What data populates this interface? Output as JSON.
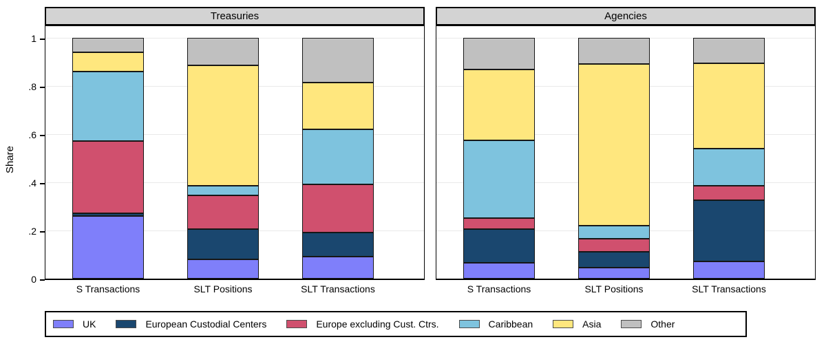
{
  "chart_data": {
    "type": "bar",
    "stacked": true,
    "orientation": "vertical",
    "ylabel": "Share",
    "ylim": [
      0,
      1
    ],
    "yticks": [
      {
        "value": 0,
        "label": "0"
      },
      {
        "value": 0.2,
        "label": ".2"
      },
      {
        "value": 0.4,
        "label": ".4"
      },
      {
        "value": 0.6,
        "label": ".6"
      },
      {
        "value": 0.8,
        "label": ".8"
      },
      {
        "value": 1,
        "label": "1"
      }
    ],
    "grid": true,
    "legend_position": "bottom",
    "categories": [
      "S Transactions",
      "SLT Positions",
      "SLT Transactions"
    ],
    "panels": [
      {
        "title": "Treasuries",
        "series": [
          {
            "name": "UK",
            "color": "#7f7ffa",
            "values": [
              0.26,
              0.08,
              0.09
            ]
          },
          {
            "name": "European Custodial Centers",
            "color": "#1a476f",
            "values": [
              0.01,
              0.125,
              0.1
            ]
          },
          {
            "name": "Europe excluding Cust. Ctrs.",
            "color": "#d0506e",
            "values": [
              0.3,
              0.14,
              0.2
            ]
          },
          {
            "name": "Caribbean",
            "color": "#7ec3de",
            "values": [
              0.29,
              0.04,
              0.23
            ]
          },
          {
            "name": "Asia",
            "color": "#ffe77e",
            "values": [
              0.08,
              0.5,
              0.195
            ]
          },
          {
            "name": "Other",
            "color": "#c0c0c0",
            "values": [
              0.06,
              0.115,
              0.185
            ]
          }
        ]
      },
      {
        "title": "Agencies",
        "series": [
          {
            "name": "UK",
            "color": "#7f7ffa",
            "values": [
              0.065,
              0.045,
              0.07
            ]
          },
          {
            "name": "European Custodial Centers",
            "color": "#1a476f",
            "values": [
              0.14,
              0.065,
              0.255
            ]
          },
          {
            "name": "Europe excluding Cust. Ctrs.",
            "color": "#d0506e",
            "values": [
              0.045,
              0.055,
              0.06
            ]
          },
          {
            "name": "Caribbean",
            "color": "#7ec3de",
            "values": [
              0.325,
              0.055,
              0.155
            ]
          },
          {
            "name": "Asia",
            "color": "#ffe77e",
            "values": [
              0.295,
              0.67,
              0.355
            ]
          },
          {
            "name": "Other",
            "color": "#c0c0c0",
            "values": [
              0.13,
              0.11,
              0.105
            ]
          }
        ]
      }
    ],
    "legend": [
      {
        "label": "UK",
        "color": "#7f7ffa"
      },
      {
        "label": "European Custodial Centers",
        "color": "#1a476f"
      },
      {
        "label": "Europe excluding Cust. Ctrs.",
        "color": "#d0506e"
      },
      {
        "label": "Caribbean",
        "color": "#7ec3de"
      },
      {
        "label": "Asia",
        "color": "#ffe77e"
      },
      {
        "label": "Other",
        "color": "#c0c0c0"
      }
    ]
  }
}
